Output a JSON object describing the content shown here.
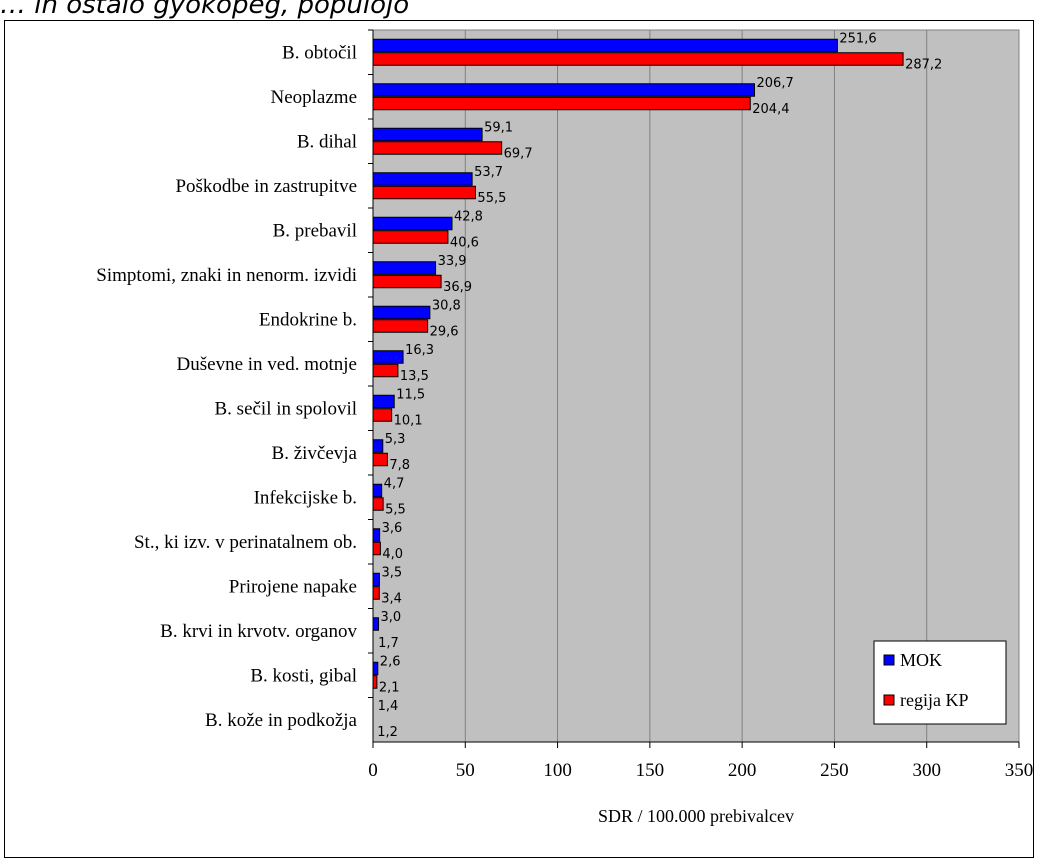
{
  "page": {
    "top_caption": "… in ostalo gyokopeg, populojo"
  },
  "chart_data": {
    "type": "bar",
    "orientation": "horizontal",
    "categories": [
      "B. obtočil",
      "Neoplazme",
      "B. dihal",
      "Poškodbe in zastrupitve",
      "B. prebavil",
      "Simptomi, znaki in nenorm. izvidi",
      "Endokrine b.",
      "Duševne in ved. motnje",
      "B. sečil in spolovil",
      "B. živčevja",
      "Infekcijske b.",
      "St., ki izv. v perinatalnem ob.",
      "Prirojene napake",
      "B. krvi in krvotv. organov",
      "B. kosti, gibal",
      "B. kože in podkožja"
    ],
    "series": [
      {
        "name": "MOK",
        "color": "#0000FF",
        "values": [
          251.6,
          206.7,
          59.1,
          53.7,
          42.8,
          33.9,
          30.8,
          16.3,
          11.5,
          5.3,
          4.7,
          3.6,
          3.5,
          3.0,
          2.6,
          1.4
        ],
        "labels": [
          "251,6",
          "206,7",
          "59,1",
          "53,7",
          "42,8",
          "33,9",
          "30,8",
          "16,3",
          "11,5",
          "5,3",
          "4,7",
          "3,6",
          "3,5",
          "3,0",
          "2,6",
          "1,4"
        ]
      },
      {
        "name": "regija KP",
        "color": "#FF0000",
        "values": [
          287.2,
          204.4,
          69.7,
          55.5,
          40.6,
          36.9,
          29.6,
          13.5,
          10.1,
          7.8,
          5.5,
          4.0,
          3.4,
          1.7,
          2.1,
          1.2
        ],
        "labels": [
          "287,2",
          "204,4",
          "69,7",
          "55,5",
          "40,6",
          "36,9",
          "29,6",
          "13,5",
          "10,1",
          "7,8",
          "5,5",
          "4,0",
          "3,4",
          "1,7",
          "2,1",
          "1,2"
        ]
      }
    ],
    "xlim": [
      0,
      350
    ],
    "xticks": [
      0,
      50,
      100,
      150,
      200,
      250,
      300,
      350
    ],
    "xlabel": "SDR / 100.000 prebivalcev",
    "ylabel": "",
    "title": "",
    "grid": true,
    "plot_background": "#C0C0C0",
    "legend_position": "bottom-right"
  }
}
